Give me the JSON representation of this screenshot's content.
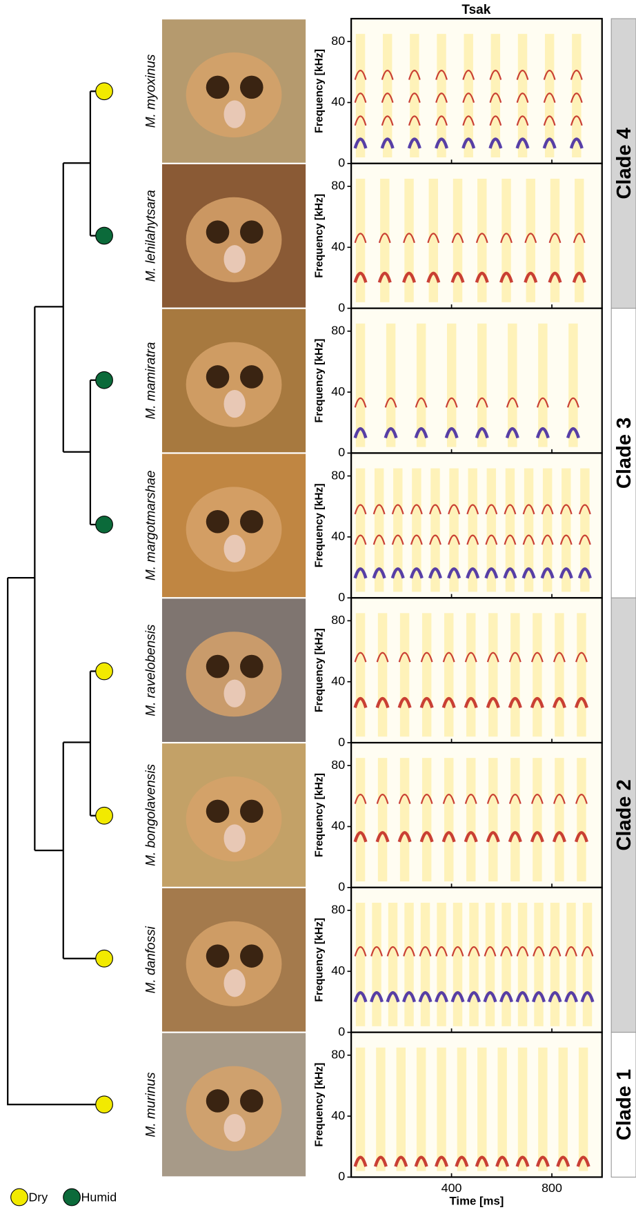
{
  "title": "Tsak",
  "clades": [
    {
      "label": "Clade 4",
      "species": [
        {
          "name": "M. myoxinus",
          "habitat": "Dry"
        },
        {
          "name": "M. lehilahytsara",
          "habitat": "Humid"
        }
      ]
    },
    {
      "label": "Clade 3",
      "species": [
        {
          "name": "M. mamiratra",
          "habitat": "Humid"
        },
        {
          "name": "M. margotmarshae",
          "habitat": "Humid"
        }
      ]
    },
    {
      "label": "Clade 2",
      "species": [
        {
          "name": "M. ravelobensis",
          "habitat": "Dry"
        },
        {
          "name": "M. bongolavensis",
          "habitat": "Dry"
        },
        {
          "name": "M. danfossi",
          "habitat": "Dry"
        }
      ]
    },
    {
      "label": "Clade 1",
      "species": [
        {
          "name": "M. murinus",
          "habitat": "Dry"
        }
      ]
    }
  ],
  "y_axis": {
    "label": "Frequency [kHz]",
    "lim": [
      0,
      95
    ],
    "ticks": [
      0,
      40,
      80
    ]
  },
  "x_axis": {
    "label": "Time [ms]",
    "lim": [
      0,
      1000
    ],
    "ticks": [
      400,
      800
    ]
  },
  "legend": [
    {
      "label": "Dry",
      "color": "#f2ea00"
    },
    {
      "label": "Humid",
      "color": "#0b6a3a"
    }
  ]
}
